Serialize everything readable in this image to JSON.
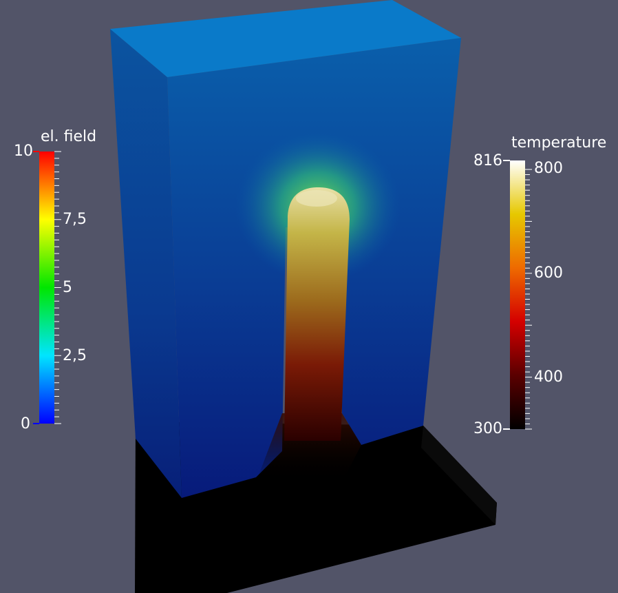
{
  "el_field_legend": {
    "title": "el. field",
    "labels": [
      "10",
      "7,5",
      "5",
      "2,5",
      "0"
    ]
  },
  "temperature_legend": {
    "title": "temperature",
    "max_label": "816",
    "min_label": "300",
    "labels": [
      "800",
      "600",
      "400"
    ]
  },
  "colors": {
    "background": "#525468",
    "box_top": "#0a7ac9",
    "box_front_top": "#075aa2",
    "box_front_bottom": "#061a72",
    "base_plate": "#000000",
    "tip_highlight": "#e0d69a",
    "tip_base": "#3a0000"
  }
}
